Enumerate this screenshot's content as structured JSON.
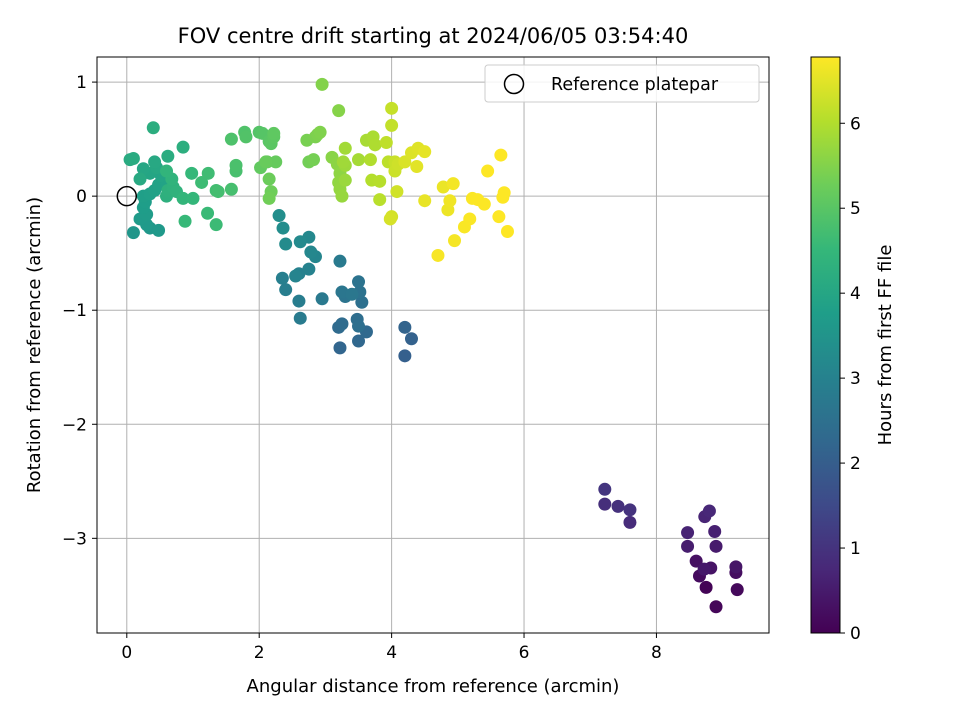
{
  "chart_data": {
    "type": "scatter",
    "title": "FOV centre drift starting at 2024/06/05 03:54:40",
    "xlabel": "Angular distance from reference (arcmin)",
    "ylabel": "Rotation from reference (arcmin)",
    "colorbar_label": "Hours from first FF file",
    "xlim": [
      -0.45,
      9.7
    ],
    "ylim": [
      -3.83,
      1.22
    ],
    "clim": [
      0,
      6.78
    ],
    "xticks": [
      0,
      2,
      4,
      6,
      8
    ],
    "yticks": [
      -3,
      -2,
      -1,
      0,
      1
    ],
    "cticks": [
      0,
      1,
      2,
      3,
      4,
      5,
      6
    ],
    "grid": true,
    "legend": {
      "placement": "top-right",
      "label": "Reference platepar"
    },
    "reference_point": {
      "x": 0,
      "y": 0
    },
    "colormap": "viridis",
    "points": [
      {
        "x": 8.75,
        "y": -3.43,
        "t": 0.05
      },
      {
        "x": 8.9,
        "y": -3.6,
        "t": 0.1
      },
      {
        "x": 9.22,
        "y": -3.45,
        "t": 0.15
      },
      {
        "x": 8.65,
        "y": -3.33,
        "t": 0.2
      },
      {
        "x": 9.2,
        "y": -3.3,
        "t": 0.25
      },
      {
        "x": 8.6,
        "y": -3.2,
        "t": 0.3
      },
      {
        "x": 8.82,
        "y": -3.26,
        "t": 0.35
      },
      {
        "x": 9.2,
        "y": -3.25,
        "t": 0.4
      },
      {
        "x": 8.72,
        "y": -3.27,
        "t": 0.45
      },
      {
        "x": 8.9,
        "y": -3.07,
        "t": 0.5
      },
      {
        "x": 8.47,
        "y": -3.07,
        "t": 0.55
      },
      {
        "x": 8.88,
        "y": -2.94,
        "t": 0.6
      },
      {
        "x": 8.47,
        "y": -2.95,
        "t": 0.65
      },
      {
        "x": 8.73,
        "y": -2.81,
        "t": 0.7
      },
      {
        "x": 8.8,
        "y": -2.76,
        "t": 0.75
      },
      {
        "x": 7.6,
        "y": -2.86,
        "t": 0.85
      },
      {
        "x": 7.22,
        "y": -2.7,
        "t": 0.9
      },
      {
        "x": 7.42,
        "y": -2.72,
        "t": 0.95
      },
      {
        "x": 7.6,
        "y": -2.75,
        "t": 1.0
      },
      {
        "x": 7.22,
        "y": -2.57,
        "t": 1.05
      },
      {
        "x": 4.2,
        "y": -1.4,
        "t": 2.05
      },
      {
        "x": 4.3,
        "y": -1.25,
        "t": 2.1
      },
      {
        "x": 4.2,
        "y": -1.15,
        "t": 2.15
      },
      {
        "x": 3.22,
        "y": -1.33,
        "t": 2.2
      },
      {
        "x": 3.5,
        "y": -1.27,
        "t": 2.25
      },
      {
        "x": 3.62,
        "y": -1.19,
        "t": 2.3
      },
      {
        "x": 3.2,
        "y": -1.15,
        "t": 2.35
      },
      {
        "x": 3.25,
        "y": -1.12,
        "t": 2.38
      },
      {
        "x": 3.48,
        "y": -1.08,
        "t": 2.42
      },
      {
        "x": 3.5,
        "y": -1.14,
        "t": 2.46
      },
      {
        "x": 3.55,
        "y": -0.93,
        "t": 2.5
      },
      {
        "x": 3.52,
        "y": -0.84,
        "t": 2.54
      },
      {
        "x": 3.5,
        "y": -0.75,
        "t": 2.58
      },
      {
        "x": 3.3,
        "y": -0.88,
        "t": 2.62
      },
      {
        "x": 3.25,
        "y": -0.84,
        "t": 2.66
      },
      {
        "x": 3.4,
        "y": -0.86,
        "t": 2.7
      },
      {
        "x": 2.95,
        "y": -0.9,
        "t": 2.74
      },
      {
        "x": 3.22,
        "y": -0.57,
        "t": 2.78
      },
      {
        "x": 2.62,
        "y": -1.07,
        "t": 2.82
      },
      {
        "x": 2.6,
        "y": -0.92,
        "t": 2.86
      },
      {
        "x": 2.4,
        "y": -0.82,
        "t": 2.9
      },
      {
        "x": 2.35,
        "y": -0.72,
        "t": 2.94
      },
      {
        "x": 2.6,
        "y": -0.68,
        "t": 2.98
      },
      {
        "x": 2.75,
        "y": -0.64,
        "t": 3.02
      },
      {
        "x": 2.55,
        "y": -0.7,
        "t": 3.06
      },
      {
        "x": 2.85,
        "y": -0.53,
        "t": 3.1
      },
      {
        "x": 2.78,
        "y": -0.49,
        "t": 3.14
      },
      {
        "x": 2.75,
        "y": -0.36,
        "t": 3.18
      },
      {
        "x": 2.62,
        "y": -0.4,
        "t": 3.22
      },
      {
        "x": 2.4,
        "y": -0.42,
        "t": 3.26
      },
      {
        "x": 2.36,
        "y": -0.28,
        "t": 3.3
      },
      {
        "x": 2.3,
        "y": -0.17,
        "t": 3.34
      },
      {
        "x": 0.1,
        "y": -0.32,
        "t": 3.55
      },
      {
        "x": 0.35,
        "y": -0.28,
        "t": 3.58
      },
      {
        "x": 0.48,
        "y": -0.3,
        "t": 3.62
      },
      {
        "x": 0.3,
        "y": -0.25,
        "t": 3.65
      },
      {
        "x": 0.2,
        "y": -0.2,
        "t": 3.68
      },
      {
        "x": 0.3,
        "y": -0.16,
        "t": 3.71
      },
      {
        "x": 0.25,
        "y": -0.1,
        "t": 3.74
      },
      {
        "x": 0.28,
        "y": -0.05,
        "t": 3.77
      },
      {
        "x": 0.25,
        "y": 0.0,
        "t": 3.8
      },
      {
        "x": 0.35,
        "y": 0.02,
        "t": 3.83
      },
      {
        "x": 0.42,
        "y": 0.05,
        "t": 3.86
      },
      {
        "x": 0.48,
        "y": 0.1,
        "t": 3.89
      },
      {
        "x": 0.6,
        "y": 0.12,
        "t": 3.92
      },
      {
        "x": 0.52,
        "y": 0.18,
        "t": 3.95
      },
      {
        "x": 0.35,
        "y": 0.2,
        "t": 3.98
      },
      {
        "x": 0.25,
        "y": 0.24,
        "t": 4.01
      },
      {
        "x": 0.45,
        "y": 0.25,
        "t": 4.04
      },
      {
        "x": 0.42,
        "y": 0.3,
        "t": 4.07
      },
      {
        "x": 0.2,
        "y": 0.15,
        "t": 4.1
      },
      {
        "x": 0.05,
        "y": 0.32,
        "t": 4.13
      },
      {
        "x": 0.1,
        "y": 0.33,
        "t": 4.16
      },
      {
        "x": 0.62,
        "y": 0.35,
        "t": 4.19
      },
      {
        "x": 0.4,
        "y": 0.6,
        "t": 4.22
      },
      {
        "x": 0.85,
        "y": 0.43,
        "t": 4.25
      },
      {
        "x": 0.6,
        "y": 0.0,
        "t": 4.28
      },
      {
        "x": 0.62,
        "y": 0.05,
        "t": 4.31
      },
      {
        "x": 0.7,
        "y": 0.08,
        "t": 4.34
      },
      {
        "x": 0.75,
        "y": 0.04,
        "t": 4.37
      },
      {
        "x": 0.68,
        "y": 0.15,
        "t": 4.4
      },
      {
        "x": 0.6,
        "y": 0.22,
        "t": 4.43
      },
      {
        "x": 0.85,
        "y": -0.02,
        "t": 4.46
      },
      {
        "x": 1.0,
        "y": -0.02,
        "t": 4.49
      },
      {
        "x": 0.98,
        "y": 0.2,
        "t": 4.52
      },
      {
        "x": 0.88,
        "y": -0.22,
        "t": 4.55
      },
      {
        "x": 1.22,
        "y": -0.15,
        "t": 4.58
      },
      {
        "x": 1.35,
        "y": -0.25,
        "t": 4.61
      },
      {
        "x": 1.13,
        "y": 0.12,
        "t": 4.64
      },
      {
        "x": 1.23,
        "y": 0.2,
        "t": 4.67
      },
      {
        "x": 1.35,
        "y": 0.05,
        "t": 4.7
      },
      {
        "x": 1.38,
        "y": 0.04,
        "t": 4.73
      },
      {
        "x": 1.58,
        "y": 0.06,
        "t": 4.76
      },
      {
        "x": 1.65,
        "y": 0.22,
        "t": 4.79
      },
      {
        "x": 1.65,
        "y": 0.27,
        "t": 4.82
      },
      {
        "x": 1.58,
        "y": 0.5,
        "t": 4.85
      },
      {
        "x": 1.78,
        "y": 0.56,
        "t": 4.88
      },
      {
        "x": 1.8,
        "y": 0.52,
        "t": 4.91
      },
      {
        "x": 2.0,
        "y": 0.56,
        "t": 4.94
      },
      {
        "x": 2.05,
        "y": 0.55,
        "t": 4.97
      },
      {
        "x": 2.15,
        "y": 0.48,
        "t": 5.0
      },
      {
        "x": 2.18,
        "y": 0.46,
        "t": 5.03
      },
      {
        "x": 2.22,
        "y": 0.52,
        "t": 5.06
      },
      {
        "x": 2.22,
        "y": 0.55,
        "t": 5.09
      },
      {
        "x": 2.02,
        "y": 0.25,
        "t": 5.12
      },
      {
        "x": 2.12,
        "y": 0.3,
        "t": 5.15
      },
      {
        "x": 2.25,
        "y": 0.3,
        "t": 5.18
      },
      {
        "x": 2.1,
        "y": 0.3,
        "t": 5.21
      },
      {
        "x": 2.15,
        "y": 0.15,
        "t": 5.24
      },
      {
        "x": 2.18,
        "y": 0.04,
        "t": 5.27
      },
      {
        "x": 2.15,
        "y": -0.02,
        "t": 5.3
      },
      {
        "x": 2.75,
        "y": 0.3,
        "t": 5.33
      },
      {
        "x": 2.82,
        "y": 0.32,
        "t": 5.36
      },
      {
        "x": 2.72,
        "y": 0.49,
        "t": 5.39
      },
      {
        "x": 2.85,
        "y": 0.52,
        "t": 5.42
      },
      {
        "x": 2.88,
        "y": 0.54,
        "t": 5.45
      },
      {
        "x": 2.92,
        "y": 0.56,
        "t": 5.48
      },
      {
        "x": 2.95,
        "y": 0.98,
        "t": 5.51
      },
      {
        "x": 3.2,
        "y": 0.75,
        "t": 5.54
      },
      {
        "x": 3.1,
        "y": 0.34,
        "t": 5.57
      },
      {
        "x": 3.18,
        "y": 0.28,
        "t": 5.6
      },
      {
        "x": 3.22,
        "y": 0.2,
        "t": 5.63
      },
      {
        "x": 3.2,
        "y": 0.12,
        "t": 5.66
      },
      {
        "x": 3.22,
        "y": 0.06,
        "t": 5.69
      },
      {
        "x": 3.25,
        "y": 0.0,
        "t": 5.72
      },
      {
        "x": 3.3,
        "y": 0.14,
        "t": 5.75
      },
      {
        "x": 3.3,
        "y": 0.27,
        "t": 5.78
      },
      {
        "x": 3.27,
        "y": 0.3,
        "t": 5.81
      },
      {
        "x": 3.3,
        "y": 0.42,
        "t": 5.84
      },
      {
        "x": 3.5,
        "y": 0.32,
        "t": 5.87
      },
      {
        "x": 3.62,
        "y": 0.49,
        "t": 5.9
      },
      {
        "x": 3.72,
        "y": 0.52,
        "t": 5.93
      },
      {
        "x": 3.75,
        "y": 0.45,
        "t": 5.96
      },
      {
        "x": 3.68,
        "y": 0.32,
        "t": 5.99
      },
      {
        "x": 3.7,
        "y": 0.14,
        "t": 6.02
      },
      {
        "x": 3.82,
        "y": 0.13,
        "t": 6.05
      },
      {
        "x": 3.82,
        "y": -0.03,
        "t": 6.08
      },
      {
        "x": 3.95,
        "y": 0.3,
        "t": 6.11
      },
      {
        "x": 3.92,
        "y": 0.47,
        "t": 6.14
      },
      {
        "x": 4.0,
        "y": 0.62,
        "t": 6.17
      },
      {
        "x": 4.0,
        "y": 0.77,
        "t": 6.2
      },
      {
        "x": 4.05,
        "y": 0.3,
        "t": 6.23
      },
      {
        "x": 4.05,
        "y": 0.22,
        "t": 6.26
      },
      {
        "x": 4.1,
        "y": 0.28,
        "t": 6.29
      },
      {
        "x": 4.08,
        "y": 0.04,
        "t": 6.32
      },
      {
        "x": 4.0,
        "y": -0.18,
        "t": 6.35
      },
      {
        "x": 3.98,
        "y": -0.2,
        "t": 6.38
      },
      {
        "x": 4.2,
        "y": 0.3,
        "t": 6.41
      },
      {
        "x": 4.3,
        "y": 0.38,
        "t": 6.44
      },
      {
        "x": 4.4,
        "y": 0.42,
        "t": 6.47
      },
      {
        "x": 4.38,
        "y": 0.26,
        "t": 6.5
      },
      {
        "x": 4.5,
        "y": 0.39,
        "t": 6.53
      },
      {
        "x": 4.5,
        "y": -0.04,
        "t": 6.56
      },
      {
        "x": 4.78,
        "y": 0.08,
        "t": 6.59
      },
      {
        "x": 4.85,
        "y": -0.12,
        "t": 6.62
      },
      {
        "x": 4.88,
        "y": -0.04,
        "t": 6.65
      },
      {
        "x": 4.93,
        "y": 0.11,
        "t": 6.68
      },
      {
        "x": 4.95,
        "y": -0.39,
        "t": 6.7
      },
      {
        "x": 4.7,
        "y": -0.52,
        "t": 6.72
      },
      {
        "x": 5.1,
        "y": -0.27,
        "t": 6.74
      },
      {
        "x": 5.18,
        "y": -0.2,
        "t": 6.75
      },
      {
        "x": 5.22,
        "y": -0.02,
        "t": 6.76
      },
      {
        "x": 5.3,
        "y": -0.03,
        "t": 6.77
      },
      {
        "x": 5.4,
        "y": -0.07,
        "t": 6.77
      },
      {
        "x": 5.45,
        "y": 0.22,
        "t": 6.78
      },
      {
        "x": 5.62,
        "y": -0.18,
        "t": 6.78
      },
      {
        "x": 5.65,
        "y": 0.36,
        "t": 6.78
      },
      {
        "x": 5.68,
        "y": -0.01,
        "t": 6.78
      },
      {
        "x": 5.7,
        "y": 0.03,
        "t": 6.78
      },
      {
        "x": 5.75,
        "y": -0.31,
        "t": 6.78
      }
    ]
  }
}
